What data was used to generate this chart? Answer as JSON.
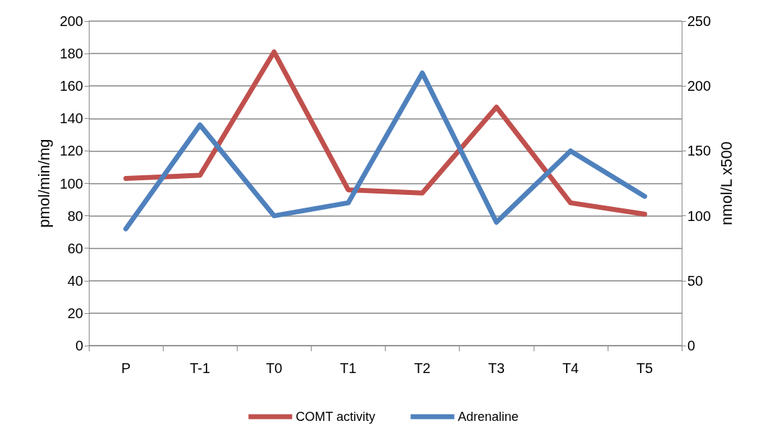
{
  "chart_data": {
    "type": "line",
    "categories": [
      "P",
      "T-1",
      "T0",
      "T1",
      "T2",
      "T3",
      "T4",
      "T5"
    ],
    "ylabel": "pmol/min/mg",
    "y2label": "nmol/L x500",
    "ylim": [
      0,
      200
    ],
    "yticks": [
      0,
      20,
      40,
      60,
      80,
      100,
      120,
      140,
      160,
      180,
      200
    ],
    "y2lim": [
      0,
      250
    ],
    "y2ticks": [
      0,
      50,
      100,
      150,
      200,
      250
    ],
    "series": [
      {
        "name": "COMT activity",
        "color": "#c0504d",
        "values": [
          103,
          105,
          181,
          96,
          94,
          147,
          88,
          81
        ]
      },
      {
        "name": "Adrenaline",
        "color": "#4f81bd",
        "axis": "y2",
        "values": [
          90,
          170,
          100,
          110,
          210,
          95,
          150,
          115
        ]
      }
    ],
    "grid": "y",
    "legend": "bottom",
    "marker": "none",
    "line_style": "solid"
  }
}
